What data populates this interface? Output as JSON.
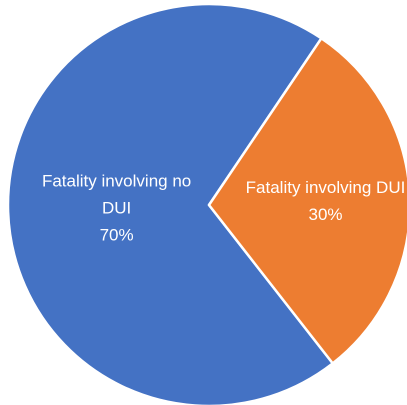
{
  "chart_data": {
    "type": "pie",
    "categories": [
      "Fatality involving no DUI",
      "Fatality involving DUI"
    ],
    "values": [
      70,
      30
    ],
    "value_labels": [
      "70%",
      "30%"
    ],
    "colors": [
      "#4472c4",
      "#ed7d31"
    ],
    "start_angle": 142
  }
}
